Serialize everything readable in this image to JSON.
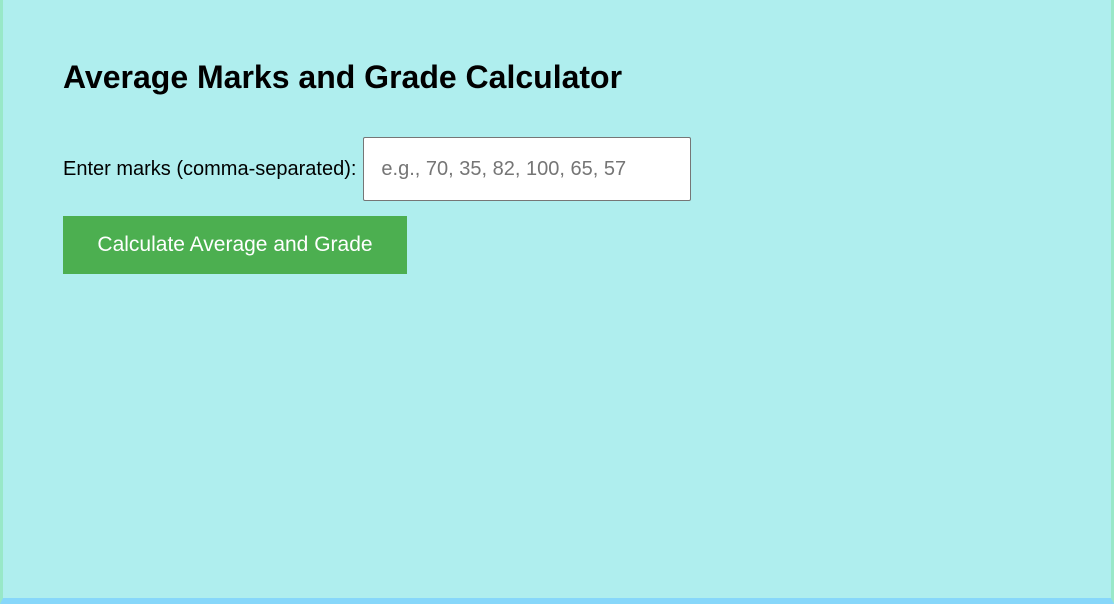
{
  "page": {
    "title": "Average Marks and Grade Calculator",
    "marks_label": "Enter marks (comma-separated):",
    "marks_value": "",
    "marks_placeholder": "e.g., 70, 35, 82, 100, 65, 57",
    "calculate_button": "Calculate Average and Grade"
  },
  "colors": {
    "background": "#afeeee",
    "button": "#4caf50"
  }
}
